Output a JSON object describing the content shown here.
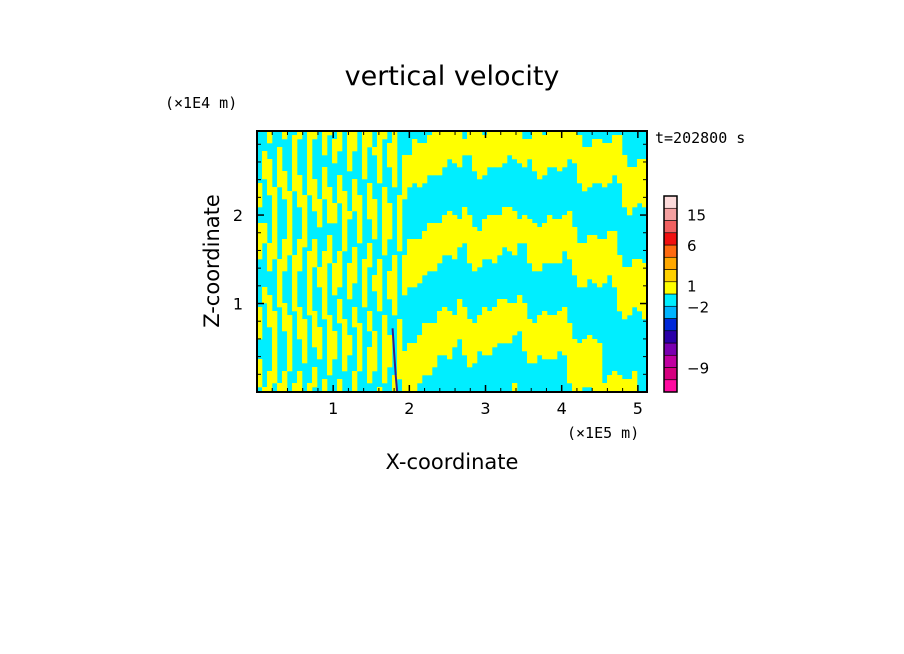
{
  "chart_data": {
    "type": "heatmap",
    "title": "vertical velocity",
    "xlabel": "X-coordinate",
    "ylabel": "Z-coordinate",
    "x_unit": "(×1E5 m)",
    "y_unit": "(×1E4 m)",
    "time_label": "t=202800 s",
    "xlim": [
      0,
      5.12
    ],
    "ylim": [
      0,
      2.95
    ],
    "x_ticks": [
      {
        "value": 1,
        "label": "1"
      },
      {
        "value": 2,
        "label": "2"
      },
      {
        "value": 3,
        "label": "3"
      },
      {
        "value": 4,
        "label": "4"
      },
      {
        "value": 5,
        "label": "5"
      }
    ],
    "y_ticks": [
      {
        "value": 1,
        "label": "1"
      },
      {
        "value": 2,
        "label": "2"
      }
    ],
    "colors": {
      "positive_small": "#ffff00",
      "negative_small": "#00eeff",
      "streak": "#3a1a8a"
    },
    "colorbar": {
      "bins": [
        {
          "color": "#ff0aa0"
        },
        {
          "color": "#d6007f"
        },
        {
          "color": "#c000a0"
        },
        {
          "color": "#7a00b0"
        },
        {
          "color": "#2a00a8"
        },
        {
          "color": "#0028d8"
        },
        {
          "color": "#00b4ff"
        },
        {
          "color": "#00eeff"
        },
        {
          "color": "#ffff00"
        },
        {
          "color": "#ffd000"
        },
        {
          "color": "#ffa800"
        },
        {
          "color": "#ff6a10"
        },
        {
          "color": "#f01010"
        },
        {
          "color": "#f06060"
        },
        {
          "color": "#f4a0a0"
        },
        {
          "color": "#fcdada"
        }
      ],
      "labels": [
        {
          "label": "15",
          "bin": 14.5
        },
        {
          "label": "6",
          "bin": 12.0
        },
        {
          "label": "1",
          "bin": 8.7
        },
        {
          "label": "−2",
          "bin": 7.0
        },
        {
          "label": "−9",
          "bin": 2.0
        }
      ]
    }
  }
}
